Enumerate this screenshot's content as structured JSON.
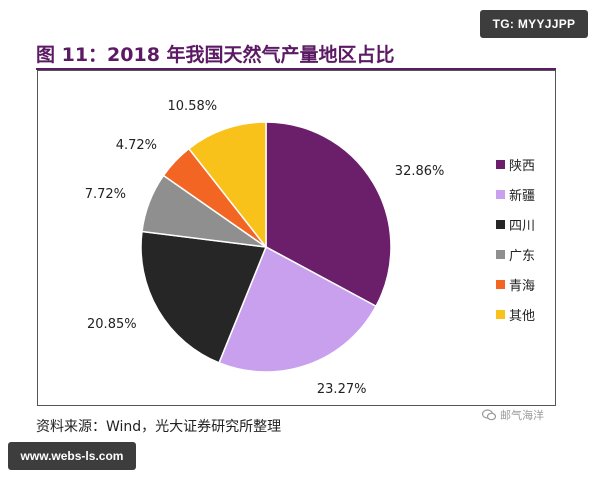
{
  "watermark_top": "TG: MYYJJPP",
  "watermark_bottom": "www.webs-ls.com",
  "title": "图 11：2018 年我国天然气产量地区占比",
  "source": "资料来源：Wind，光大证券研究所整理",
  "badge_text": "邮气海洋",
  "badge_icon": "wechat-icon",
  "chart_data": {
    "type": "pie",
    "title": "图 11：2018 年我国天然气产量地区占比",
    "legend_position": "right",
    "start_angle": "12 o'clock, clockwise",
    "slices": [
      {
        "label": "陕西",
        "value": 32.86,
        "display": "32.86%",
        "color": "#6b1f6b"
      },
      {
        "label": "新疆",
        "value": 23.27,
        "display": "23.27%",
        "color": "#c9a0ee"
      },
      {
        "label": "四川",
        "value": 20.85,
        "display": "20.85%",
        "color": "#262626"
      },
      {
        "label": "广东",
        "value": 7.72,
        "display": "7.72%",
        "color": "#8f8f8f"
      },
      {
        "label": "青海",
        "value": 4.72,
        "display": "4.72%",
        "color": "#f26522"
      },
      {
        "label": "其他",
        "value": 10.58,
        "display": "10.58%",
        "color": "#f8c21a"
      }
    ],
    "source": "资料来源：Wind，光大证券研究所整理"
  }
}
